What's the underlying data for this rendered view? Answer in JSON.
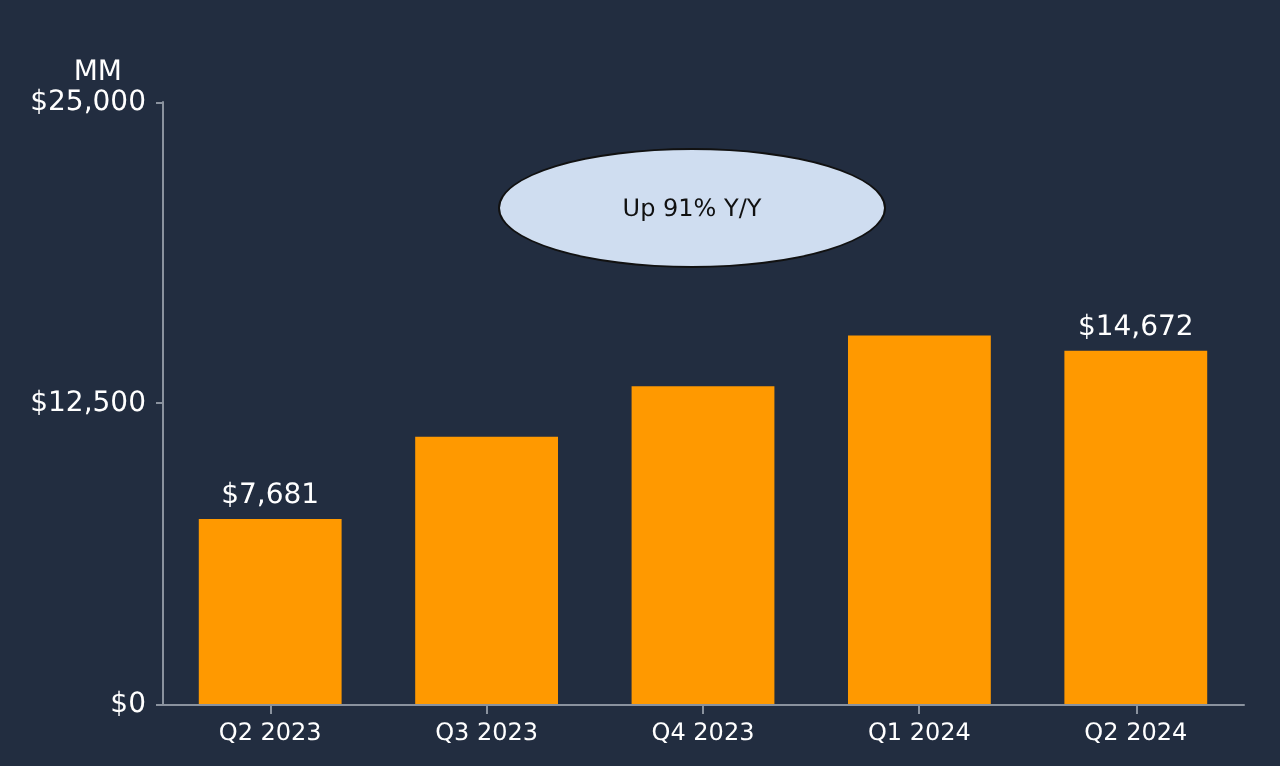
{
  "chart_data": {
    "type": "bar",
    "ylabel": "MM",
    "annotations": [
      "Up 91% Y/Y"
    ],
    "categories": [
      "Q2 2023",
      "Q3 2023",
      "Q4 2023",
      "Q1 2024",
      "Q2 2024"
    ],
    "values": [
      7681,
      11100,
      13200,
      15300,
      14672
    ],
    "value_labels": [
      "$7,681",
      null,
      null,
      null,
      "$14,672"
    ],
    "color": "#ff9900",
    "ylim": [
      0,
      25000
    ],
    "yticks": [
      {
        "value": 0,
        "label": "$0"
      },
      {
        "value": 12500,
        "label": "$12,500"
      },
      {
        "value": 25000,
        "label": "$25,000"
      }
    ],
    "grid": false
  }
}
